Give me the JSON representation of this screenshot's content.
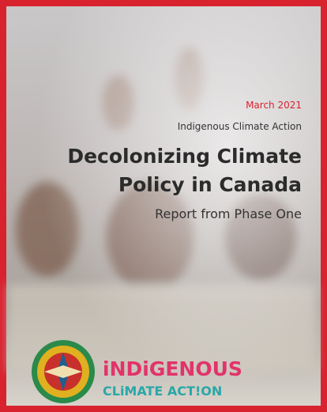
{
  "cover": {
    "date": "March 2021",
    "organization": "Indigenous Climate Action",
    "title_lines": [
      "Decolonizing Climate",
      "Policy in Canada"
    ],
    "subtitle": "Report from Phase One",
    "logo": {
      "line1": "iNDiGENOUS",
      "line2": "CLiMATE ACT!ON"
    }
  }
}
